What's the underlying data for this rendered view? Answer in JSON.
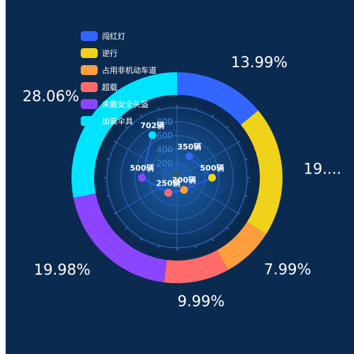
{
  "chart_data": [
    {
      "type": "pie",
      "variant": "donut",
      "legend_position": "top-left",
      "slices": [
        {
          "name": "闯红灯",
          "value": 350,
          "percent_label": "13.99%",
          "color": "#3366ff"
        },
        {
          "name": "逆行",
          "value": 500,
          "percent_label": "19....",
          "color": "#f0d21b"
        },
        {
          "name": "占用非机动车道",
          "value": 200,
          "percent_label": "7.99%",
          "color": "#ff9e3d"
        },
        {
          "name": "超载",
          "value": 250,
          "percent_label": "9.99%",
          "color": "#ff6b6b"
        },
        {
          "name": "未戴安全头盔",
          "value": 500,
          "percent_label": "19.98%",
          "color": "#8b45ff"
        },
        {
          "name": "加装伞具",
          "value": 702,
          "percent_label": "28.06%",
          "color": "#00e4ff"
        }
      ]
    },
    {
      "type": "line",
      "variant": "polar",
      "radial_axis": {
        "min": 0,
        "max": 1000,
        "ticks": [
          200,
          400,
          600,
          800
        ]
      },
      "points": [
        {
          "category": "闯红灯",
          "value": 350,
          "label": "350辆",
          "color": "#3366ff"
        },
        {
          "category": "逆行",
          "value": 500,
          "label": "500辆",
          "color": "#f0d21b"
        },
        {
          "category": "占用非机动车道",
          "value": 200,
          "label": "200辆",
          "color": "#ff9e3d"
        },
        {
          "category": "超载",
          "value": 250,
          "label": "250辆",
          "color": "#ff6b6b"
        },
        {
          "category": "未戴安全头盔",
          "value": 500,
          "label": "500辆",
          "color": "#8b45ff"
        },
        {
          "category": "加装伞具",
          "value": 702,
          "label": "702辆",
          "color": "#00e4ff"
        }
      ],
      "line_color": "#2f5bea"
    }
  ]
}
